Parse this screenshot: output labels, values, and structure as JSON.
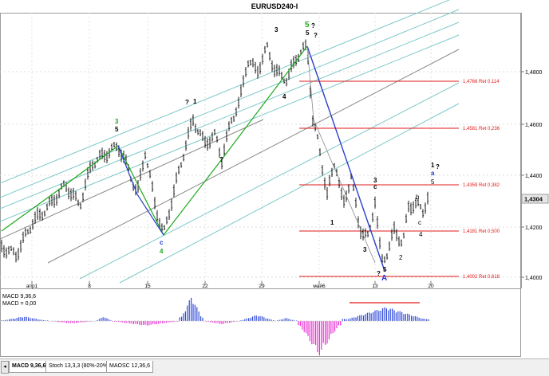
{
  "window": {
    "title": "EURUSD240-I"
  },
  "colors": {
    "price_line": "#7a7a7a",
    "wave_green": "#1ea81e",
    "wave_blue": "#2a40c8",
    "label_blue": "#1a39d8",
    "fib_red": "#e01818",
    "channel_cyan": "#7fc8c8",
    "channel_gray": "#8a8a8a",
    "macd_pos": "#2e4ad8",
    "macd_neg": "#e830d0",
    "grid": "#c8c8c8",
    "current_price_bg": "#e6e6e6"
  },
  "price_axis": {
    "ticks": [
      "1,4800",
      "1,4600",
      "1,4400",
      "1,4200",
      "1,4000"
    ],
    "current_price": "1,4304"
  },
  "time_axis": {
    "labels": [
      "апр1",
      "8",
      "15",
      "22",
      "29",
      "май6",
      "13",
      "20"
    ]
  },
  "fib_levels": [
    {
      "label": "1,4766 Ret 0,114"
    },
    {
      "label": "1,4581 Ret 0,236"
    },
    {
      "label": "1,4359 Ret 0,382"
    },
    {
      "label": "1,4181 Ret 0,500"
    },
    {
      "label": "1,4002 Ret 0,618"
    }
  ],
  "wave_labels": {
    "top_green_5": "5",
    "top_q1": "?",
    "top_q2": "?",
    "top_5": "5",
    "top_3": "3",
    "left_3": "3",
    "left_5": "5",
    "left_qm": "?",
    "mid_q": "?",
    "mid_1": "1",
    "mid_5": "5",
    "mid_4": "4",
    "mid_3": "3",
    "c_left": "c",
    "c_mid": "c",
    "end_q": "?",
    "end_1": "1",
    "end_a": "a",
    "end_5": "5",
    "bot_A": "A",
    "bot_5": "5",
    "bot_q": "?",
    "green_4": "4",
    "small_c": "c",
    "small_4": "4",
    "small_2": "2",
    "small_1": "1",
    "small_3": "3",
    "small_b": "b",
    "w3g": "3"
  },
  "indicator": {
    "name": "MACD 9,36,6",
    "value": "MACD = 0,00"
  },
  "tabs": [
    {
      "label": "MACD 9,36,6"
    },
    {
      "label": "Stoch 13,3,3 (80%-20%)"
    },
    {
      "label": "MAOSC 12,36,6"
    }
  ]
}
